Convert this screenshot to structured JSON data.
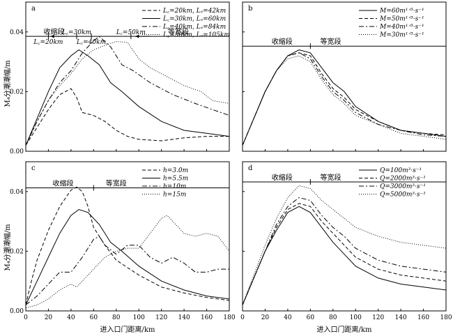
{
  "figure": {
    "ylabel_top": "M₄分潮潮幅/m",
    "ylabel_bottom": "M₄分潮潮幅/m",
    "xlabel": "进入口门距离/km"
  },
  "chart_data": [
    {
      "panel": "a",
      "type": "line",
      "xlim": [
        0,
        180
      ],
      "ylim": [
        0,
        0.05
      ],
      "xticks": [
        0,
        20,
        40,
        60,
        80,
        100,
        120,
        140,
        160,
        180
      ],
      "yticks": [
        0.0,
        0.02,
        0.04
      ],
      "ytick_labels": [
        "0.00",
        "0.02",
        "0.04"
      ],
      "show_xtick_labels": false,
      "show_ytick_labels": true,
      "legend": "top-right",
      "segments": {
        "label_y": 0.0418,
        "labels": [
          {
            "text": "收缩段",
            "x": 25
          },
          {
            "text": "等宽段",
            "x": 135
          }
        ],
        "dividers": [
          {
            "x": 20,
            "label": "L꜀=20km",
            "y": 0.0366,
            "side": "below"
          },
          {
            "x": 45,
            "label": "L꜀=30km",
            "y": 0.0418,
            "side": "above"
          },
          {
            "x": 58,
            "label": "L꜀=40km",
            "y": 0.0366,
            "side": "below"
          },
          {
            "x": 93,
            "label": "L꜀=50km",
            "y": 0.0418,
            "side": "above"
          }
        ],
        "arrows": [
          {
            "x_from": 37,
            "x_to": 22
          },
          {
            "x_from": 110,
            "x_to": 97
          }
        ]
      },
      "series": [
        {
          "name": "L꜀=20km, Lₐ=42km",
          "dash": "5,3",
          "x": [
            0,
            10,
            20,
            30,
            40,
            45,
            50,
            60,
            70,
            80,
            90,
            100,
            120,
            140,
            160,
            180
          ],
          "y": [
            0.002,
            0.008,
            0.014,
            0.019,
            0.021,
            0.018,
            0.013,
            0.012,
            0.01,
            0.007,
            0.005,
            0.004,
            0.0035,
            0.0045,
            0.005,
            0.005
          ]
        },
        {
          "name": "L꜀=30km, Lₐ=60km",
          "dash": "",
          "x": [
            0,
            10,
            20,
            30,
            40,
            47,
            55,
            65,
            75,
            85,
            100,
            120,
            140,
            160,
            180
          ],
          "y": [
            0.002,
            0.011,
            0.02,
            0.028,
            0.032,
            0.034,
            0.032,
            0.029,
            0.023,
            0.02,
            0.015,
            0.01,
            0.007,
            0.006,
            0.005
          ]
        },
        {
          "name": "L꜀=40km, Lₐ=84km",
          "dash": "7,3,2,3",
          "x": [
            0,
            10,
            20,
            30,
            40,
            50,
            60,
            65,
            75,
            85,
            95,
            110,
            130,
            150,
            165,
            180
          ],
          "y": [
            0.002,
            0.01,
            0.017,
            0.023,
            0.027,
            0.033,
            0.037,
            0.0385,
            0.035,
            0.029,
            0.027,
            0.023,
            0.019,
            0.016,
            0.014,
            0.012
          ]
        },
        {
          "name": "L꜀=50km, Lₐ=105km",
          "dash": "1,2",
          "x": [
            0,
            10,
            20,
            30,
            40,
            50,
            60,
            70,
            80,
            90,
            100,
            110,
            125,
            140,
            155,
            165,
            180
          ],
          "y": [
            0.002,
            0.01,
            0.017,
            0.022,
            0.026,
            0.031,
            0.034,
            0.0355,
            0.0368,
            0.0365,
            0.031,
            0.028,
            0.025,
            0.022,
            0.02,
            0.017,
            0.016
          ]
        }
      ]
    },
    {
      "panel": "b",
      "type": "line",
      "xlim": [
        0,
        180
      ],
      "ylim": [
        0,
        0.05
      ],
      "xticks": [
        0,
        20,
        40,
        60,
        80,
        100,
        120,
        140,
        160,
        180
      ],
      "yticks": [
        0.0,
        0.02,
        0.04
      ],
      "ytick_labels": [],
      "show_xtick_labels": false,
      "show_ytick_labels": false,
      "legend": "top-right",
      "segments": {
        "label_y": 0.0385,
        "labels": [
          {
            "text": "收缩段",
            "x": 35
          },
          {
            "text": "等宽段",
            "x": 78
          }
        ],
        "dividers": [
          {
            "x": 60,
            "label": "",
            "y": 0.0366,
            "side": "none"
          }
        ],
        "arrows": []
      },
      "series": [
        {
          "name": "M=60m¹ᐟ³·s⁻¹",
          "dash": "",
          "x": [
            0,
            10,
            20,
            30,
            40,
            50,
            60,
            70,
            80,
            90,
            100,
            120,
            140,
            160,
            180
          ],
          "y": [
            0.002,
            0.011,
            0.02,
            0.027,
            0.032,
            0.034,
            0.033,
            0.028,
            0.023,
            0.02,
            0.015,
            0.01,
            0.007,
            0.006,
            0.005
          ]
        },
        {
          "name": "M=50m¹ᐟ³·s⁻¹",
          "dash": "5,3",
          "x": [
            0,
            10,
            20,
            30,
            40,
            50,
            60,
            70,
            80,
            90,
            100,
            120,
            140,
            160,
            180
          ],
          "y": [
            0.002,
            0.011,
            0.02,
            0.027,
            0.032,
            0.033,
            0.032,
            0.026,
            0.021,
            0.018,
            0.014,
            0.01,
            0.007,
            0.006,
            0.0055
          ]
        },
        {
          "name": "M=40m¹ᐟ³·s⁻¹",
          "dash": "7,3,2,3",
          "x": [
            0,
            10,
            20,
            30,
            40,
            50,
            60,
            70,
            80,
            90,
            100,
            120,
            140,
            160,
            180
          ],
          "y": [
            0.002,
            0.011,
            0.02,
            0.027,
            0.032,
            0.033,
            0.031,
            0.025,
            0.02,
            0.017,
            0.013,
            0.009,
            0.007,
            0.0055,
            0.005
          ]
        },
        {
          "name": "M=30m¹ᐟ³·s⁻¹",
          "dash": "1,2",
          "x": [
            0,
            10,
            20,
            30,
            40,
            50,
            60,
            70,
            80,
            90,
            100,
            120,
            140,
            160,
            180
          ],
          "y": [
            0.002,
            0.011,
            0.02,
            0.027,
            0.031,
            0.032,
            0.03,
            0.024,
            0.019,
            0.016,
            0.012,
            0.009,
            0.006,
            0.005,
            0.004
          ]
        }
      ]
    },
    {
      "panel": "c",
      "type": "line",
      "xlim": [
        0,
        180
      ],
      "ylim": [
        0,
        0.05
      ],
      "xticks": [
        0,
        20,
        40,
        60,
        80,
        100,
        120,
        140,
        160,
        180
      ],
      "xtick_labels": [
        "0",
        "20",
        "40",
        "60",
        "80",
        "100",
        "120",
        "140",
        "160",
        "180"
      ],
      "yticks": [
        0.0,
        0.02,
        0.04
      ],
      "ytick_labels": [
        "0.00",
        "0.02",
        "0.04"
      ],
      "show_xtick_labels": true,
      "show_ytick_labels": true,
      "legend": "top-right",
      "segments": {
        "label_y": 0.0445,
        "labels": [
          {
            "text": "收缩段",
            "x": 33
          },
          {
            "text": "等宽段",
            "x": 80
          }
        ],
        "dividers": [
          {
            "x": 60,
            "label": "",
            "y": 0.043,
            "side": "none"
          }
        ],
        "arrows": []
      },
      "series": [
        {
          "name": "h=3.0m",
          "dash": "5,3",
          "x": [
            0,
            5,
            10,
            20,
            30,
            40,
            45,
            50,
            55,
            60,
            70,
            80,
            100,
            120,
            140,
            160,
            180
          ],
          "y": [
            0.002,
            0.01,
            0.017,
            0.027,
            0.035,
            0.0405,
            0.0415,
            0.04,
            0.035,
            0.028,
            0.022,
            0.017,
            0.012,
            0.008,
            0.006,
            0.0045,
            0.0035
          ]
        },
        {
          "name": "h=5.5m",
          "dash": "",
          "x": [
            0,
            10,
            20,
            30,
            40,
            47,
            55,
            65,
            75,
            85,
            100,
            120,
            140,
            160,
            180
          ],
          "y": [
            0.002,
            0.01,
            0.018,
            0.026,
            0.032,
            0.034,
            0.033,
            0.029,
            0.023,
            0.02,
            0.015,
            0.01,
            0.007,
            0.005,
            0.004
          ]
        },
        {
          "name": "h=10m",
          "dash": "7,3,2,3",
          "x": [
            0,
            10,
            20,
            30,
            40,
            50,
            60,
            65,
            70,
            80,
            90,
            100,
            110,
            120,
            130,
            140,
            150,
            160,
            170,
            180
          ],
          "y": [
            0.002,
            0.005,
            0.009,
            0.013,
            0.013,
            0.018,
            0.024,
            0.025,
            0.022,
            0.019,
            0.022,
            0.022,
            0.018,
            0.016,
            0.018,
            0.016,
            0.013,
            0.013,
            0.014,
            0.014
          ]
        },
        {
          "name": "h=15m",
          "dash": "1,2",
          "x": [
            0,
            10,
            20,
            30,
            40,
            45,
            50,
            60,
            70,
            80,
            90,
            100,
            110,
            120,
            125,
            130,
            140,
            150,
            160,
            170,
            180
          ],
          "y": [
            0.001,
            0.002,
            0.004,
            0.007,
            0.009,
            0.008,
            0.01,
            0.014,
            0.018,
            0.02,
            0.021,
            0.021,
            0.026,
            0.031,
            0.032,
            0.03,
            0.026,
            0.025,
            0.026,
            0.025,
            0.02
          ]
        }
      ]
    },
    {
      "panel": "d",
      "type": "line",
      "xlim": [
        0,
        180
      ],
      "ylim": [
        0,
        0.05
      ],
      "xticks": [
        0,
        20,
        40,
        60,
        80,
        100,
        120,
        140,
        160,
        180
      ],
      "xtick_labels": [
        "0",
        "20",
        "40",
        "60",
        "80",
        "100",
        "120",
        "140",
        "160",
        "180"
      ],
      "yticks": [
        0.0,
        0.02,
        0.04
      ],
      "ytick_labels": [],
      "show_xtick_labels": true,
      "show_ytick_labels": false,
      "legend": "top-right",
      "segments": {
        "label_y": 0.0465,
        "labels": [
          {
            "text": "收缩段",
            "x": 35
          },
          {
            "text": "等宽段",
            "x": 78
          }
        ],
        "dividers": [
          {
            "x": 60,
            "label": "",
            "y": 0.0445,
            "side": "none"
          }
        ],
        "arrows": []
      },
      "series": [
        {
          "name": "Q=100m³·s⁻¹",
          "dash": "",
          "x": [
            0,
            10,
            20,
            30,
            40,
            50,
            60,
            70,
            80,
            90,
            100,
            120,
            140,
            160,
            180
          ],
          "y": [
            0.002,
            0.011,
            0.02,
            0.027,
            0.033,
            0.035,
            0.033,
            0.028,
            0.023,
            0.019,
            0.015,
            0.011,
            0.009,
            0.008,
            0.007
          ]
        },
        {
          "name": "Q=2000m³·s⁻¹",
          "dash": "5,3",
          "x": [
            0,
            10,
            20,
            30,
            40,
            50,
            60,
            70,
            80,
            90,
            100,
            120,
            140,
            160,
            180
          ],
          "y": [
            0.002,
            0.011,
            0.02,
            0.028,
            0.034,
            0.036,
            0.035,
            0.03,
            0.026,
            0.022,
            0.018,
            0.014,
            0.012,
            0.011,
            0.01
          ]
        },
        {
          "name": "Q=3000m³·s⁻¹",
          "dash": "7,3,2,3",
          "x": [
            0,
            10,
            20,
            30,
            40,
            50,
            60,
            70,
            80,
            90,
            100,
            120,
            140,
            160,
            180
          ],
          "y": [
            0.002,
            0.011,
            0.02,
            0.029,
            0.035,
            0.038,
            0.037,
            0.032,
            0.028,
            0.025,
            0.021,
            0.017,
            0.015,
            0.014,
            0.013
          ]
        },
        {
          "name": "Q=5000m³·s⁻¹",
          "dash": "1,2",
          "x": [
            0,
            10,
            20,
            30,
            40,
            50,
            60,
            70,
            80,
            90,
            100,
            120,
            140,
            160,
            180
          ],
          "y": [
            0.002,
            0.012,
            0.022,
            0.031,
            0.038,
            0.042,
            0.041,
            0.037,
            0.034,
            0.031,
            0.028,
            0.025,
            0.023,
            0.022,
            0.021
          ]
        }
      ]
    }
  ]
}
